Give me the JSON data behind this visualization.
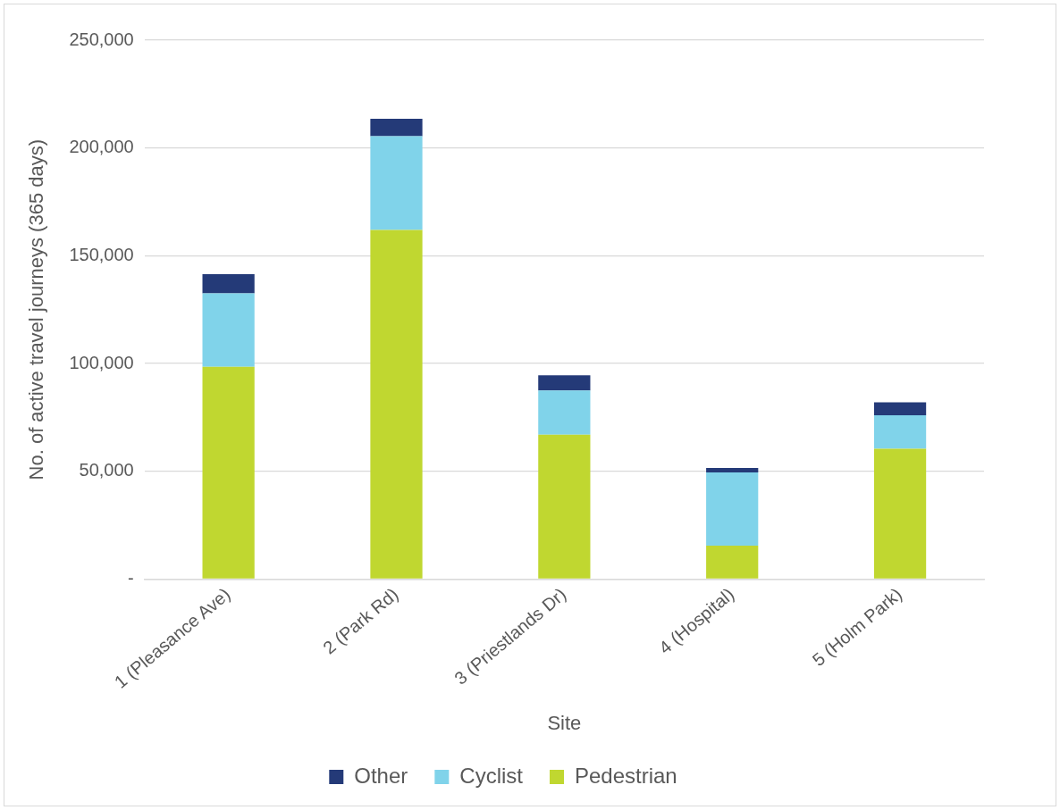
{
  "chart_data": {
    "type": "bar",
    "stacked": true,
    "xlabel": "Site",
    "ylabel": "No. of active travel journeys (365 days)",
    "categories": [
      "1 (Pleasance Ave)",
      "2 (Park Rd)",
      "3 (Priestlands Dr)",
      "4 (Hospital)",
      "5 (Holm Park)"
    ],
    "series": [
      {
        "name": "Pedestrian",
        "color": "#c0d730",
        "values": [
          98500,
          162000,
          67000,
          15500,
          60500
        ]
      },
      {
        "name": "Cyclist",
        "color": "#80d3ea",
        "values": [
          34000,
          43500,
          20500,
          34000,
          15500
        ]
      },
      {
        "name": "Other",
        "color": "#243a78",
        "values": [
          9000,
          8000,
          7000,
          2000,
          6000
        ]
      }
    ],
    "ylim": [
      0,
      250000
    ],
    "yticks": [
      {
        "value": 0,
        "label": "-"
      },
      {
        "value": 50000,
        "label": "50,000"
      },
      {
        "value": 100000,
        "label": "100,000"
      },
      {
        "value": 150000,
        "label": "150,000"
      },
      {
        "value": 200000,
        "label": "200,000"
      },
      {
        "value": 250000,
        "label": "250,000"
      }
    ],
    "grid": "y",
    "legend": "bottom"
  }
}
